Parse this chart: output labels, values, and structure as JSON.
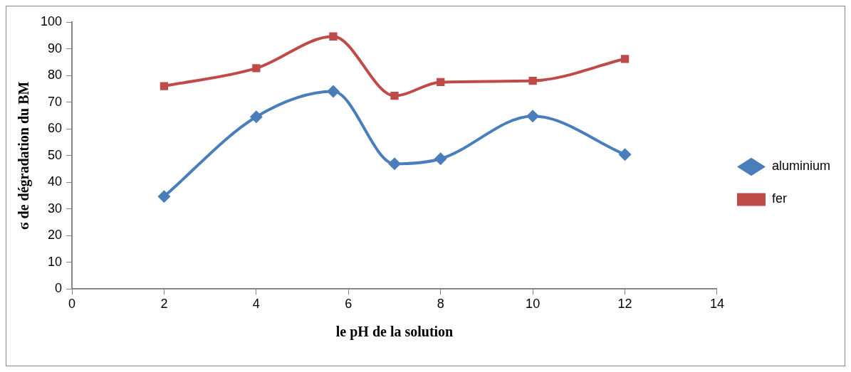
{
  "chart_data": {
    "type": "line",
    "xlabel": "le pH de la solution",
    "ylabel": "ϭ de dégradation du BM",
    "xlim": [
      0,
      14
    ],
    "xticks": [
      0,
      2,
      4,
      6,
      8,
      10,
      12,
      14
    ],
    "ylim": [
      0,
      100
    ],
    "yticks": [
      0,
      10,
      20,
      30,
      40,
      50,
      60,
      70,
      80,
      90,
      100
    ],
    "grid": false,
    "legend": "right",
    "series": [
      {
        "name": "aluminium",
        "color": "#4a7ebb",
        "marker": "diamond",
        "x": [
          2,
          4,
          5.67,
          7,
          8,
          10,
          12
        ],
        "values": [
          34.7,
          64.5,
          74,
          46.9,
          48.8,
          64.8,
          50.4
        ]
      },
      {
        "name": "fer",
        "color": "#be4b48",
        "marker": "square",
        "x": [
          2,
          4,
          5.67,
          7,
          8,
          10,
          12
        ],
        "values": [
          76,
          82.7,
          94.6,
          72.4,
          77.5,
          78,
          86.2
        ]
      }
    ]
  }
}
